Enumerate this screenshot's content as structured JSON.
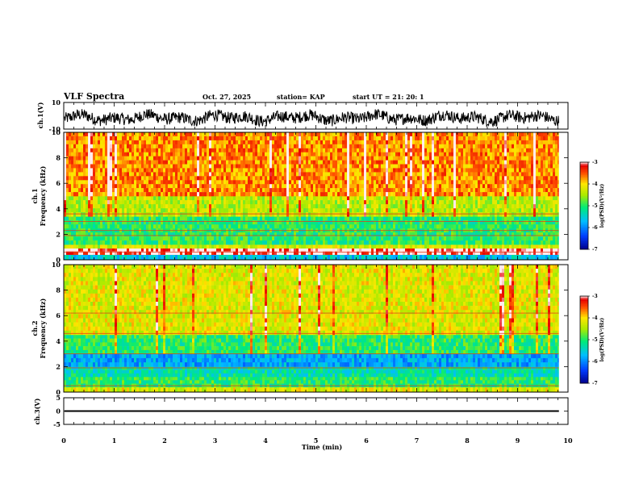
{
  "header": {
    "title": "VLF Spectra",
    "date": "Oct. 27, 2025",
    "station": "station= KAP",
    "start": "start  UT  =   21: 20: 1"
  },
  "chart_data": {
    "type": "heatmap",
    "title": "VLF Spectra",
    "xlabel": "Time (min)",
    "xlim": [
      0,
      10
    ],
    "x_ticks": [
      "0",
      "1",
      "2",
      "3",
      "4",
      "5",
      "6",
      "7",
      "8",
      "9",
      "10"
    ],
    "data_end_min": 9.82,
    "panels": [
      {
        "id": "ch1-wave",
        "kind": "waveform",
        "ylabel": "ch.1(V)",
        "ylim": [
          -10,
          10
        ],
        "y_ticks": [
          "10",
          "-10"
        ],
        "typical_amplitude": [
          -8,
          5
        ]
      },
      {
        "id": "ch1-spec",
        "kind": "spectrogram",
        "ylabel_top": "ch.1",
        "ylabel": "Frequency (kHz)",
        "ylim": [
          0,
          10
        ],
        "y_ticks": [
          "0",
          "2",
          "4",
          "6",
          "8",
          "10"
        ],
        "bands_khz_log_psd": [
          {
            "from": 0,
            "to": 0.4,
            "level": -5.6
          },
          {
            "from": 0.4,
            "to": 0.9,
            "level": -3.0
          },
          {
            "from": 0.9,
            "to": 1.2,
            "level": -4.3
          },
          {
            "from": 1.2,
            "to": 3.4,
            "level": -5.0
          },
          {
            "from": 3.4,
            "to": 5.0,
            "level": -4.4
          },
          {
            "from": 5.0,
            "to": 10,
            "level": -3.7
          }
        ],
        "lines_khz": [
          1.9,
          2.3,
          3.0,
          3.6,
          0.6
        ],
        "colorbar": {
          "label": "log(PSD)(V²/Hz)",
          "min": -7,
          "max": -3,
          "ticks": [
            "-3",
            "-4",
            "-5",
            "-6",
            "-7"
          ]
        }
      },
      {
        "id": "ch2-spec",
        "kind": "spectrogram",
        "ylabel_top": "ch.2",
        "ylabel": "Frequency (kHz)",
        "ylim": [
          0,
          10
        ],
        "y_ticks": [
          "0",
          "2",
          "4",
          "6",
          "8",
          "10"
        ],
        "bands_khz_log_psd": [
          {
            "from": 0,
            "to": 0.4,
            "level": -4.2
          },
          {
            "from": 0.4,
            "to": 1.2,
            "level": -5.0
          },
          {
            "from": 1.2,
            "to": 2.0,
            "level": -5.3
          },
          {
            "from": 2.0,
            "to": 3.0,
            "level": -5.8
          },
          {
            "from": 3.0,
            "to": 4.5,
            "level": -5.0
          },
          {
            "from": 4.5,
            "to": 10,
            "level": -4.2
          }
        ],
        "lines_khz": [
          1.9,
          3.0,
          4.6,
          6.2,
          0.5
        ],
        "colorbar": {
          "label": "log(PSD)(V²/Hz)",
          "min": -7,
          "max": -3,
          "ticks": [
            "-3",
            "-4",
            "-5",
            "-6",
            "-7"
          ]
        }
      },
      {
        "id": "ch3-wave",
        "kind": "waveform",
        "ylabel": "ch.3(V)",
        "ylim": [
          -5,
          5
        ],
        "y_ticks": [
          "5",
          "0",
          "-5"
        ],
        "typical_amplitude": [
          -0.3,
          0.3
        ],
        "offset": 0
      }
    ]
  }
}
